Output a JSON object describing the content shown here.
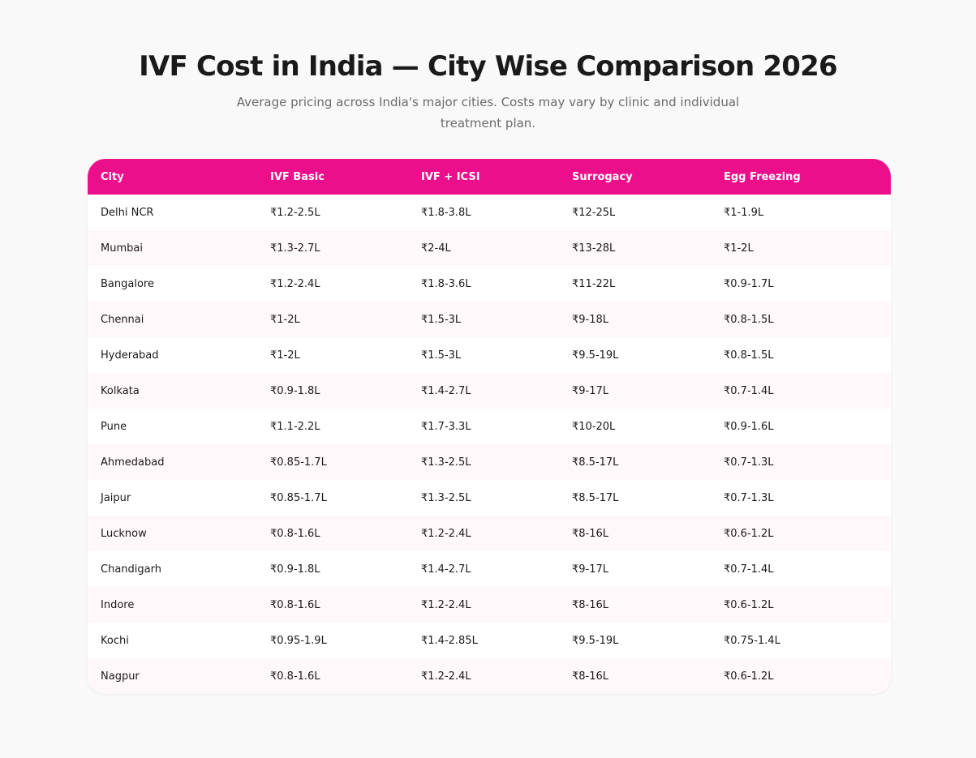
{
  "header": {
    "title": "IVF Cost in India — City Wise Comparison 2026",
    "subtitle": "Average pricing across India's major cities. Costs may vary by clinic and individual treatment plan."
  },
  "theme": {
    "accent": "#ec0f8b",
    "stripe": "#fff8fb",
    "background": "#f9f9f9"
  },
  "table": {
    "columns": [
      "City",
      "IVF Basic",
      "IVF + ICSI",
      "Surrogacy",
      "Egg Freezing"
    ],
    "rows": [
      [
        "Delhi NCR",
        "₹1.2-2.5L",
        "₹1.8-3.8L",
        "₹12-25L",
        "₹1-1.9L"
      ],
      [
        "Mumbai",
        "₹1.3-2.7L",
        "₹2-4L",
        "₹13-28L",
        "₹1-2L"
      ],
      [
        "Bangalore",
        "₹1.2-2.4L",
        "₹1.8-3.6L",
        "₹11-22L",
        "₹0.9-1.7L"
      ],
      [
        "Chennai",
        "₹1-2L",
        "₹1.5-3L",
        "₹9-18L",
        "₹0.8-1.5L"
      ],
      [
        "Hyderabad",
        "₹1-2L",
        "₹1.5-3L",
        "₹9.5-19L",
        "₹0.8-1.5L"
      ],
      [
        "Kolkata",
        "₹0.9-1.8L",
        "₹1.4-2.7L",
        "₹9-17L",
        "₹0.7-1.4L"
      ],
      [
        "Pune",
        "₹1.1-2.2L",
        "₹1.7-3.3L",
        "₹10-20L",
        "₹0.9-1.6L"
      ],
      [
        "Ahmedabad",
        "₹0.85-1.7L",
        "₹1.3-2.5L",
        "₹8.5-17L",
        "₹0.7-1.3L"
      ],
      [
        "Jaipur",
        "₹0.85-1.7L",
        "₹1.3-2.5L",
        "₹8.5-17L",
        "₹0.7-1.3L"
      ],
      [
        "Lucknow",
        "₹0.8-1.6L",
        "₹1.2-2.4L",
        "₹8-16L",
        "₹0.6-1.2L"
      ],
      [
        "Chandigarh",
        "₹0.9-1.8L",
        "₹1.4-2.7L",
        "₹9-17L",
        "₹0.7-1.4L"
      ],
      [
        "Indore",
        "₹0.8-1.6L",
        "₹1.2-2.4L",
        "₹8-16L",
        "₹0.6-1.2L"
      ],
      [
        "Kochi",
        "₹0.95-1.9L",
        "₹1.4-2.85L",
        "₹9.5-19L",
        "₹0.75-1.4L"
      ],
      [
        "Nagpur",
        "₹0.8-1.6L",
        "₹1.2-2.4L",
        "₹8-16L",
        "₹0.6-1.2L"
      ]
    ]
  }
}
